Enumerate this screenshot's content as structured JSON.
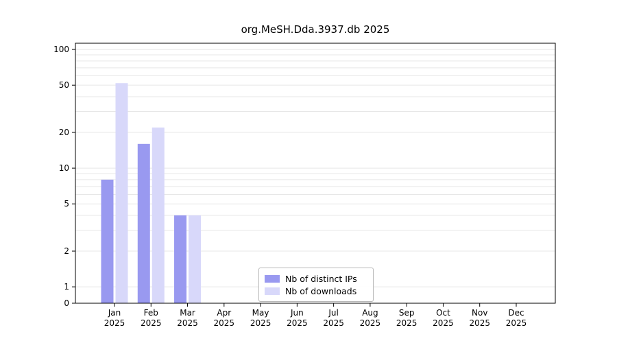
{
  "chart_data": {
    "type": "bar",
    "title": "org.MeSH.Dda.3937.db 2025",
    "year": "2025",
    "categories": [
      "Jan",
      "Feb",
      "Mar",
      "Apr",
      "May",
      "Jun",
      "Jul",
      "Aug",
      "Sep",
      "Oct",
      "Nov",
      "Dec"
    ],
    "series": [
      {
        "name": "Nb of distinct IPs",
        "color": "#9999f0",
        "values": [
          8,
          16,
          4,
          0,
          0,
          0,
          0,
          0,
          0,
          0,
          0,
          0
        ]
      },
      {
        "name": "Nb of downloads",
        "color": "#d8d8fa",
        "values": [
          52,
          22,
          4,
          0,
          0,
          0,
          0,
          0,
          0,
          0,
          0,
          0
        ]
      }
    ],
    "y_ticks": [
      0,
      1,
      2,
      5,
      10,
      20,
      50,
      100
    ],
    "ylim": [
      0,
      100
    ],
    "y_scale": "symlog",
    "xlabel": "",
    "ylabel": "",
    "grid": "horizontal",
    "grid_color": "#e7e7e7",
    "axis_color": "#000000",
    "legend_position": "bottom-center-inside"
  }
}
